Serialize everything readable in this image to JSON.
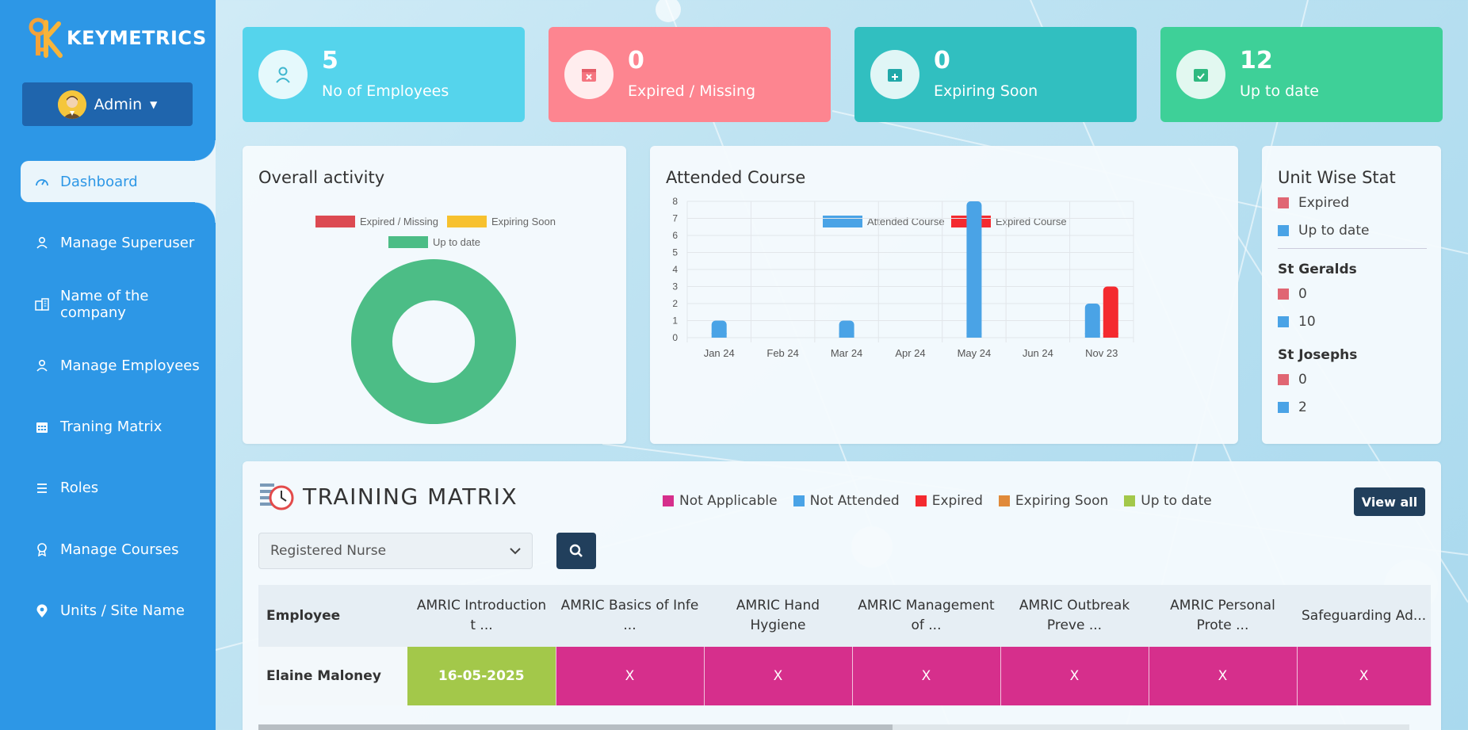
{
  "app": {
    "logo_text": "KEYMETRICS",
    "admin_label": "Admin"
  },
  "sidebar": {
    "items": [
      {
        "label": "Dashboard",
        "icon": "gauge-icon"
      },
      {
        "label": "Manage Superuser",
        "icon": "user-icon"
      },
      {
        "label": "Name of the company",
        "icon": "building-icon"
      },
      {
        "label": "Manage Employees",
        "icon": "user-icon"
      },
      {
        "label": "Traning Matrix",
        "icon": "calendar-icon"
      },
      {
        "label": "Roles",
        "icon": "list-icon"
      },
      {
        "label": "Manage Courses",
        "icon": "award-icon"
      },
      {
        "label": "Units / Site Name",
        "icon": "location-pin-icon"
      }
    ]
  },
  "stats": [
    {
      "value": "5",
      "label": "No of Employees",
      "color": "#55d4ec"
    },
    {
      "value": "0",
      "label": "Expired / Missing",
      "color": "#fd8590"
    },
    {
      "value": "0",
      "label": "Expiring Soon",
      "color": "#31bfc0"
    },
    {
      "value": "12",
      "label": "Up to date",
      "color": "#3ed098"
    }
  ],
  "overall": {
    "title": "Overall activity",
    "legend": [
      "Expired / Missing",
      "Expiring Soon",
      "Up to date"
    ]
  },
  "chart_data": {
    "type": "bar",
    "title": "Attended Course",
    "categories": [
      "Jan 24",
      "Feb 24",
      "Mar 24",
      "Apr 24",
      "May 24",
      "Jun 24",
      "Nov 23"
    ],
    "series": [
      {
        "name": "Attended Course",
        "values": [
          1,
          0,
          1,
          0,
          8,
          0,
          2
        ],
        "color": "#4aa3e6"
      },
      {
        "name": "Expired Course",
        "values": [
          0,
          0,
          0,
          0,
          0,
          0,
          3
        ],
        "color": "#f42a2f"
      }
    ],
    "ylim": [
      0,
      8
    ],
    "yticks": [
      "0",
      "1",
      "2",
      "3",
      "4",
      "5",
      "6",
      "7",
      "8"
    ],
    "legend": "top"
  },
  "unit_wise": {
    "title": "Unit Wise Stat",
    "legend": [
      "Expired",
      "Up to date"
    ],
    "units": [
      {
        "name": "St Geralds",
        "expired": "0",
        "uptodate": "10"
      },
      {
        "name": "St Josephs",
        "expired": "0",
        "uptodate": "2"
      }
    ]
  },
  "matrix": {
    "title": "TRAINING MATRIX",
    "legend": [
      "Not Applicable",
      "Not Attended",
      "Expired",
      "Expiring Soon",
      "Up to date"
    ],
    "view_all": "View all",
    "role_select": "Registered Nurse",
    "columns": [
      "Employee",
      "AMRIC Introduction t ...",
      "AMRIC Basics of Infe ...",
      "AMRIC Hand Hygiene",
      "AMRIC Management of ...",
      "AMRIC Outbreak Preve ...",
      "AMRIC Personal Prote ...",
      "Safeguarding Ad..."
    ],
    "rows": [
      {
        "employee": "Elaine Maloney",
        "cells": [
          "16-05-2025",
          "X",
          "X",
          "X",
          "X",
          "X",
          "X"
        ]
      }
    ]
  }
}
